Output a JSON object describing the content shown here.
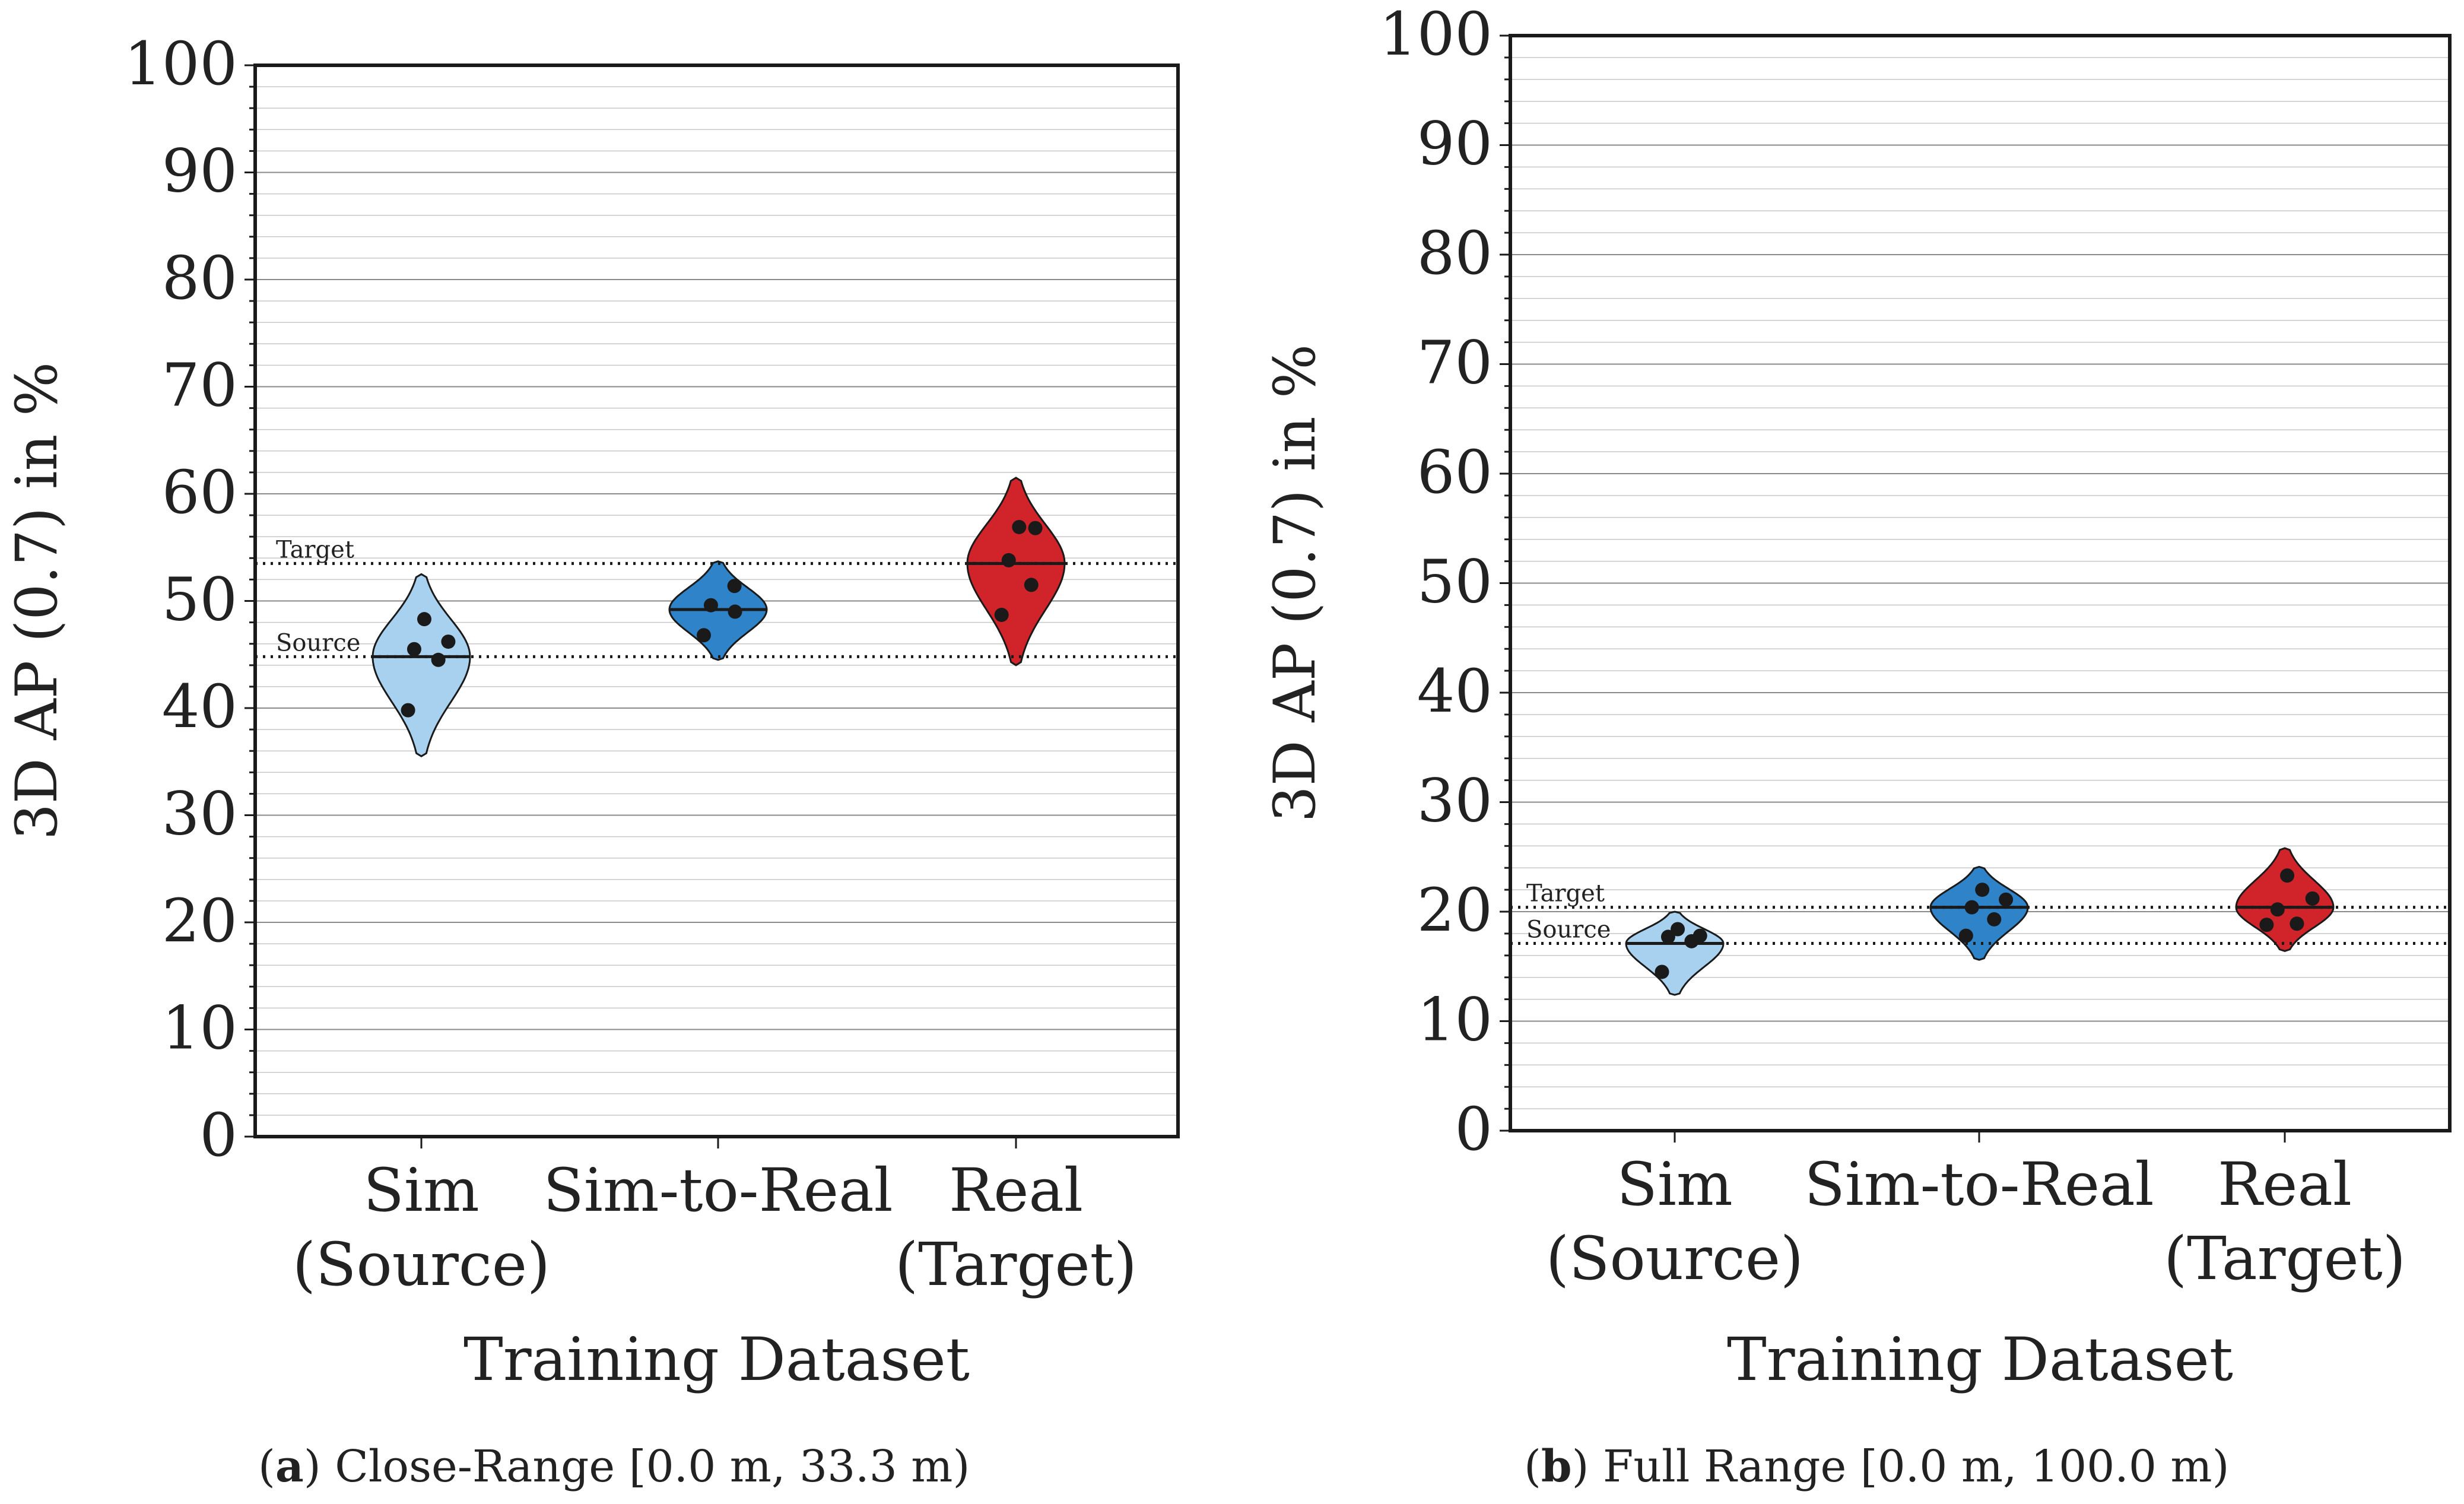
{
  "figure": {
    "captions": [
      {
        "letter": "a",
        "text": "Close-Range [0.0 m, 33.3 m)"
      },
      {
        "letter": "b",
        "text": "Full Range [0.0 m, 100.0 m)"
      }
    ]
  },
  "colors": {
    "sim": "#a8d1ef",
    "sim_to_real": "#2f83c8",
    "real": "#d0232a",
    "frame": "#1a1a1a",
    "grid_major": "#8a8a8a",
    "grid_minor": "#c8c8c8",
    "point": "#1a1a1a"
  },
  "chart_data": [
    {
      "type": "violin",
      "id": "a",
      "ylabel": "3D AP (0.7) in %",
      "xlabel": "Training Dataset",
      "ylim": [
        0,
        100
      ],
      "yticks": [
        0,
        10,
        20,
        30,
        40,
        50,
        60,
        70,
        80,
        90,
        100
      ],
      "grid": true,
      "categories": [
        {
          "key": "sim",
          "lines": [
            "Sim",
            "(Source)"
          ]
        },
        {
          "key": "sim_to_real",
          "lines": [
            "Sim-to-Real"
          ]
        },
        {
          "key": "real",
          "lines": [
            "Real",
            "(Target)"
          ]
        }
      ],
      "reference_lines": [
        {
          "label": "Target",
          "value": 53.5
        },
        {
          "label": "Source",
          "value": 44.8
        }
      ],
      "series": [
        {
          "name": "Sim (Source)",
          "color_key": "sim",
          "median": 44.8,
          "range": [
            35.5,
            52.5
          ],
          "points": [
            39.8,
            44.5,
            45.5,
            46.2,
            48.3
          ]
        },
        {
          "name": "Sim-to-Real",
          "color_key": "sim_to_real",
          "median": 49.2,
          "range": [
            44.5,
            53.7
          ],
          "points": [
            46.8,
            49.0,
            49.6,
            51.4
          ]
        },
        {
          "name": "Real (Target)",
          "color_key": "real",
          "median": 53.5,
          "range": [
            44.0,
            61.5
          ],
          "points": [
            48.7,
            51.5,
            53.8,
            56.8,
            56.9
          ]
        }
      ]
    },
    {
      "type": "violin",
      "id": "b",
      "ylabel": "3D AP (0.7) in %",
      "xlabel": "Training Dataset",
      "ylim": [
        0,
        100
      ],
      "yticks": [
        0,
        10,
        20,
        30,
        40,
        50,
        60,
        70,
        80,
        90,
        100
      ],
      "grid": true,
      "categories": [
        {
          "key": "sim",
          "lines": [
            "Sim",
            "(Source)"
          ]
        },
        {
          "key": "sim_to_real",
          "lines": [
            "Sim-to-Real"
          ]
        },
        {
          "key": "real",
          "lines": [
            "Real",
            "(Target)"
          ]
        }
      ],
      "reference_lines": [
        {
          "label": "Target",
          "value": 20.4
        },
        {
          "label": "Source",
          "value": 17.1
        }
      ],
      "series": [
        {
          "name": "Sim (Source)",
          "color_key": "sim",
          "median": 17.1,
          "range": [
            12.4,
            20.0
          ],
          "points": [
            14.5,
            17.3,
            17.7,
            17.8,
            18.4
          ]
        },
        {
          "name": "Sim-to-Real",
          "color_key": "sim_to_real",
          "median": 20.4,
          "range": [
            15.6,
            24.1
          ],
          "points": [
            17.8,
            19.3,
            20.4,
            21.1,
            22.0
          ]
        },
        {
          "name": "Real (Target)",
          "color_key": "real",
          "median": 20.4,
          "range": [
            16.4,
            25.8
          ],
          "points": [
            18.8,
            18.9,
            20.2,
            21.2,
            23.3
          ]
        }
      ]
    }
  ]
}
